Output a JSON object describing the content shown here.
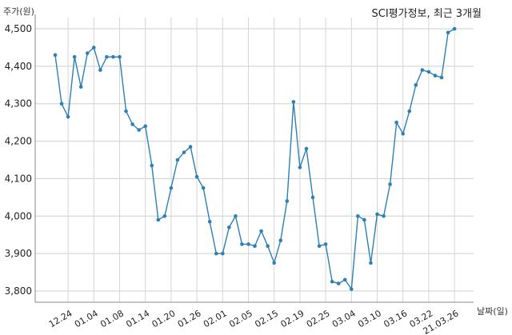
{
  "chart_data": {
    "type": "line",
    "title": "SCI평가정보, 최근 3개월",
    "ylabel": "주가(원)",
    "xlabel": "날짜(일)",
    "ylim": [
      3770,
      4530
    ],
    "yticks": [
      3800,
      3900,
      4000,
      4100,
      4200,
      4300,
      4400,
      4500
    ],
    "ytick_labels": [
      "3,800",
      "3,900",
      "4,000",
      "4,100",
      "4,200",
      "4,300",
      "4,400",
      "4,500"
    ],
    "grid": true,
    "series_color": "#2e7fb4",
    "x_tick_labels": [
      {
        "index": 2,
        "label": "12.24"
      },
      {
        "index": 6,
        "label": "01.04"
      },
      {
        "index": 10,
        "label": "01.08"
      },
      {
        "index": 14,
        "label": "01.14"
      },
      {
        "index": 18,
        "label": "01.20"
      },
      {
        "index": 22,
        "label": "01.26"
      },
      {
        "index": 26,
        "label": "02.01"
      },
      {
        "index": 30,
        "label": "02.05"
      },
      {
        "index": 34,
        "label": "02.15"
      },
      {
        "index": 38,
        "label": "02.19"
      },
      {
        "index": 42,
        "label": "02.25"
      },
      {
        "index": 46,
        "label": "03.04"
      },
      {
        "index": 50,
        "label": "03.10"
      },
      {
        "index": 54,
        "label": "03.16"
      },
      {
        "index": 58,
        "label": "03.22"
      },
      {
        "index": 62,
        "label": "21.03.26"
      }
    ],
    "values": [
      4430,
      4300,
      4265,
      4425,
      4345,
      4435,
      4450,
      4390,
      4425,
      4425,
      4425,
      4280,
      4245,
      4230,
      4240,
      4135,
      3990,
      4000,
      4075,
      4150,
      4170,
      4185,
      4105,
      4075,
      3985,
      3900,
      3900,
      3970,
      4000,
      3925,
      3925,
      3920,
      3960,
      3920,
      3875,
      3935,
      4040,
      4305,
      4130,
      4180,
      4050,
      3920,
      3925,
      3825,
      3820,
      3830,
      3805,
      4000,
      3990,
      3875,
      4005,
      4000,
      4085,
      4250,
      4220,
      4280,
      4350,
      4390,
      4385,
      4375,
      4370,
      4490,
      4500
    ]
  }
}
